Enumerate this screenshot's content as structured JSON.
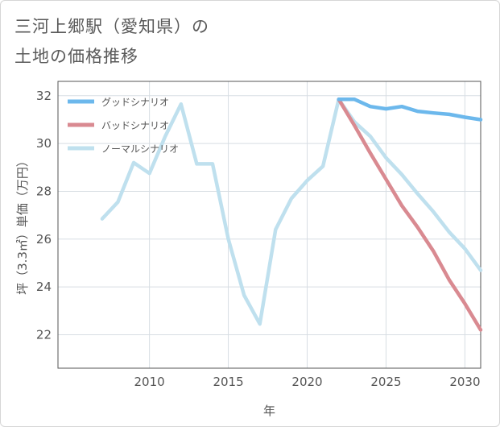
{
  "title": {
    "line1": "三河上郷駅（愛知県）の",
    "line2": "土地の価格推移"
  },
  "colors": {
    "good": "#6cb8ec",
    "bad": "#d98a91",
    "normal": "#bfe0ee",
    "grid": "#d7dde3",
    "axis": "#555555"
  },
  "chart_data": {
    "type": "line",
    "title": "三河上郷駅（愛知県）の 土地の価格推移",
    "xlabel": "年",
    "ylabel": "坪（3.3㎡）単価（万円）",
    "xlim": [
      2004.2,
      2031
    ],
    "ylim": [
      20.6,
      32.6
    ],
    "xticks": [
      2010,
      2015,
      2020,
      2025,
      2030
    ],
    "yticks": [
      22,
      24,
      26,
      28,
      30,
      32
    ],
    "grid": true,
    "legend_position": "top-left",
    "series": [
      {
        "name": "グッドシナリオ",
        "color": "#6cb8ec",
        "x": [
          2022,
          2023,
          2024,
          2025,
          2026,
          2027,
          2028,
          2029,
          2030,
          2031
        ],
        "values": [
          31.85,
          31.85,
          31.55,
          31.45,
          31.55,
          31.35,
          31.28,
          31.22,
          31.1,
          31.0
        ]
      },
      {
        "name": "バッドシナリオ",
        "color": "#d98a91",
        "x": [
          2022,
          2023,
          2024,
          2025,
          2026,
          2027,
          2028,
          2029,
          2030,
          2031
        ],
        "values": [
          31.85,
          30.75,
          29.6,
          28.5,
          27.4,
          26.5,
          25.5,
          24.3,
          23.3,
          22.2
        ]
      },
      {
        "name": "ノーマルシナリオ",
        "color": "#bfe0ee",
        "x": [
          2007,
          2008,
          2009,
          2010,
          2011,
          2012,
          2013,
          2014,
          2015,
          2016,
          2017,
          2018,
          2019,
          2020,
          2021,
          2022,
          2023,
          2024,
          2025,
          2026,
          2027,
          2028,
          2029,
          2030,
          2031
        ],
        "values": [
          26.85,
          27.55,
          29.2,
          28.75,
          30.3,
          31.65,
          29.15,
          29.15,
          26.0,
          23.65,
          22.45,
          26.4,
          27.7,
          28.45,
          29.05,
          31.85,
          30.9,
          30.3,
          29.4,
          28.7,
          27.9,
          27.15,
          26.3,
          25.6,
          24.7
        ]
      }
    ]
  }
}
